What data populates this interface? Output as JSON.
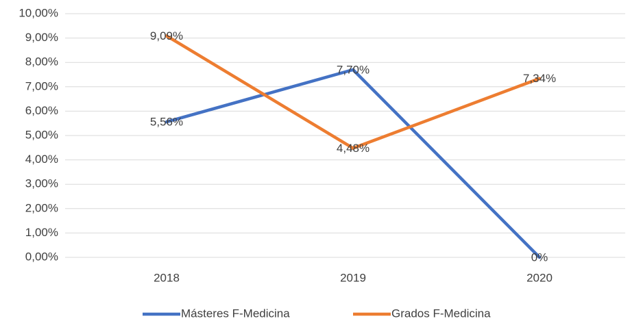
{
  "chart_data": {
    "type": "line",
    "categories": [
      "2018",
      "2019",
      "2020"
    ],
    "series": [
      {
        "name": "Másteres F-Medicina",
        "color": "#4472c4",
        "values": [
          5.56,
          7.7,
          0
        ],
        "value_labels": [
          "5,56%",
          "7,70%",
          "0%"
        ]
      },
      {
        "name": "Grados F-Medicina",
        "color": "#ed7d31",
        "values": [
          9.09,
          4.48,
          7.34
        ],
        "value_labels": [
          "9,09%",
          "4,48%",
          "7,34%"
        ]
      }
    ],
    "ylim": [
      0,
      10
    ],
    "yticks": [
      {
        "value": 0,
        "label": "0,00%"
      },
      {
        "value": 1,
        "label": "1,00%"
      },
      {
        "value": 2,
        "label": "2,00%"
      },
      {
        "value": 3,
        "label": "3,00%"
      },
      {
        "value": 4,
        "label": "4,00%"
      },
      {
        "value": 5,
        "label": "5,00%"
      },
      {
        "value": 6,
        "label": "6,00%"
      },
      {
        "value": 7,
        "label": "7,00%"
      },
      {
        "value": 8,
        "label": "8,00%"
      },
      {
        "value": 9,
        "label": "9,00%"
      },
      {
        "value": 10,
        "label": "10,00%"
      }
    ],
    "grid": true,
    "legend": "bottom"
  }
}
